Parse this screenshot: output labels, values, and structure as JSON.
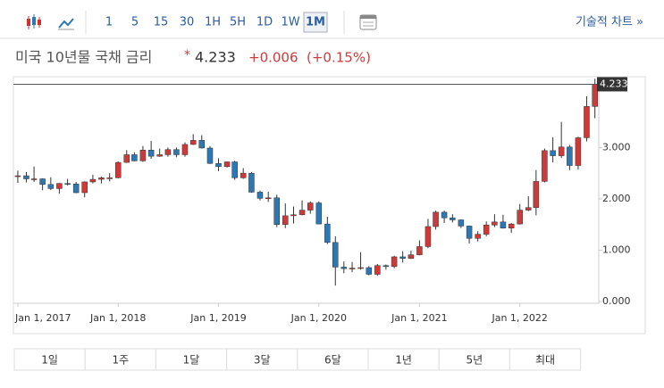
{
  "toolbar": {
    "intervals": [
      "1",
      "5",
      "15",
      "30",
      "1H",
      "5H",
      "1D",
      "1W",
      "1M"
    ],
    "selected": 8,
    "link": "기술적 차트 »"
  },
  "header": {
    "title": "미국 10년물 국채 금리",
    "price": "4.233",
    "change": "+0.006",
    "change_pct": "(+0.15%)"
  },
  "ranges": [
    "1일",
    "1주",
    "1달",
    "3달",
    "6달",
    "1년",
    "5년",
    "최대"
  ],
  "chart_data": {
    "type": "candlestick",
    "x": [
      "2017-01-01",
      "2017-02-01",
      "2017-03-01",
      "2017-04-01",
      "2017-05-01",
      "2017-06-01",
      "2017-07-01",
      "2017-08-01",
      "2017-09-01",
      "2017-10-01",
      "2017-11-01",
      "2017-12-01",
      "2018-01-01",
      "2018-02-01",
      "2018-03-01",
      "2018-04-01",
      "2018-05-01",
      "2018-06-01",
      "2018-07-01",
      "2018-08-01",
      "2018-09-01",
      "2018-10-01",
      "2018-11-01",
      "2018-12-01",
      "2019-01-01",
      "2019-02-01",
      "2019-03-01",
      "2019-04-01",
      "2019-05-01",
      "2019-06-01",
      "2019-07-01",
      "2019-08-01",
      "2019-09-01",
      "2019-10-01",
      "2019-11-01",
      "2019-12-01",
      "2020-01-01",
      "2020-02-01",
      "2020-03-01",
      "2020-04-01",
      "2020-05-01",
      "2020-06-01",
      "2020-07-01",
      "2020-08-01",
      "2020-09-01",
      "2020-10-01",
      "2020-11-01",
      "2020-12-01",
      "2021-01-01",
      "2021-02-01",
      "2021-03-01",
      "2021-04-01",
      "2021-05-01",
      "2021-06-01",
      "2021-07-01",
      "2021-08-01",
      "2021-09-01",
      "2021-10-01",
      "2021-11-01",
      "2021-12-01",
      "2022-01-01",
      "2022-02-01",
      "2022-03-01",
      "2022-04-01",
      "2022-05-01",
      "2022-06-01",
      "2022-07-01",
      "2022-08-01",
      "2022-09-01",
      "2022-10-01"
    ],
    "open": [
      2.44,
      2.45,
      2.39,
      2.39,
      2.28,
      2.2,
      2.3,
      2.29,
      2.12,
      2.33,
      2.38,
      2.41,
      2.41,
      2.71,
      2.86,
      2.74,
      2.95,
      2.83,
      2.86,
      2.96,
      2.86,
      3.06,
      3.14,
      2.99,
      2.69,
      2.63,
      2.72,
      2.41,
      2.5,
      2.13,
      2.01,
      2.02,
      1.5,
      1.67,
      1.69,
      1.78,
      1.92,
      1.51,
      1.15,
      0.67,
      0.64,
      0.65,
      0.66,
      0.53,
      0.7,
      0.68,
      0.87,
      0.84,
      0.91,
      1.07,
      1.46,
      1.74,
      1.63,
      1.59,
      1.47,
      1.23,
      1.31,
      1.49,
      1.55,
      1.43,
      1.51,
      1.78,
      1.83,
      2.34,
      2.94,
      2.84,
      3.01,
      2.65,
      3.19,
      3.8
    ],
    "high": [
      2.55,
      2.52,
      2.63,
      2.4,
      2.42,
      2.31,
      2.39,
      2.33,
      2.34,
      2.47,
      2.43,
      2.5,
      2.73,
      2.95,
      2.91,
      3.03,
      3.13,
      2.98,
      3.0,
      3.0,
      3.1,
      3.26,
      3.24,
      3.03,
      2.79,
      2.73,
      2.74,
      2.6,
      2.52,
      2.16,
      2.14,
      2.08,
      1.91,
      1.85,
      1.97,
      1.95,
      1.95,
      1.65,
      1.27,
      0.78,
      0.77,
      0.96,
      0.69,
      0.73,
      0.72,
      0.89,
      0.98,
      0.99,
      1.19,
      1.61,
      1.77,
      1.77,
      1.7,
      1.6,
      1.48,
      1.37,
      1.56,
      1.7,
      1.69,
      1.53,
      1.9,
      2.05,
      2.56,
      2.98,
      3.2,
      3.5,
      3.05,
      3.21,
      4.0,
      4.34
    ],
    "low": [
      2.31,
      2.32,
      2.33,
      2.17,
      2.17,
      2.1,
      2.26,
      2.11,
      2.03,
      2.3,
      2.3,
      2.34,
      2.4,
      2.7,
      2.73,
      2.72,
      2.78,
      2.82,
      2.82,
      2.81,
      2.82,
      3.05,
      2.98,
      2.68,
      2.54,
      2.61,
      2.37,
      2.39,
      2.12,
      1.97,
      1.94,
      1.45,
      1.43,
      1.52,
      1.68,
      1.71,
      1.51,
      1.12,
      0.31,
      0.55,
      0.57,
      0.62,
      0.51,
      0.5,
      0.62,
      0.65,
      0.76,
      0.83,
      0.9,
      1.04,
      1.4,
      1.53,
      1.54,
      1.43,
      1.13,
      1.17,
      1.27,
      1.45,
      1.42,
      1.34,
      1.5,
      1.76,
      1.68,
      2.32,
      2.71,
      2.8,
      2.56,
      2.57,
      3.12,
      3.57
    ],
    "close": [
      2.45,
      2.39,
      2.39,
      2.28,
      2.2,
      2.3,
      2.29,
      2.12,
      2.33,
      2.38,
      2.41,
      2.41,
      2.71,
      2.86,
      2.74,
      2.95,
      2.83,
      2.86,
      2.96,
      2.86,
      3.06,
      3.14,
      2.99,
      2.69,
      2.63,
      2.72,
      2.41,
      2.5,
      2.13,
      2.01,
      2.02,
      1.5,
      1.67,
      1.69,
      1.78,
      1.92,
      1.51,
      1.15,
      0.67,
      0.64,
      0.65,
      0.66,
      0.53,
      0.7,
      0.68,
      0.87,
      0.84,
      0.91,
      1.07,
      1.46,
      1.74,
      1.63,
      1.59,
      1.47,
      1.23,
      1.31,
      1.49,
      1.55,
      1.43,
      1.51,
      1.78,
      1.83,
      2.34,
      2.94,
      2.84,
      3.01,
      2.65,
      3.19,
      3.8,
      4.233
    ],
    "up_color": "#d0393a",
    "down_color": "#2b78b5",
    "last_price": {
      "value": 4.233,
      "label": "4.233"
    },
    "xlim": [
      "2016-12-16",
      "2022-10-15"
    ],
    "xticks": [
      {
        "value": "2017-01-01",
        "label": "Jan 1, 2017"
      },
      {
        "value": "2018-01-01",
        "label": "Jan 1, 2018"
      },
      {
        "value": "2019-01-01",
        "label": "Jan 1, 2019"
      },
      {
        "value": "2020-01-01",
        "label": "Jan 1, 2020"
      },
      {
        "value": "2021-01-01",
        "label": "Jan 1, 2021"
      },
      {
        "value": "2022-01-01",
        "label": "Jan 1, 2022"
      }
    ],
    "ylim": [
      0,
      4.38
    ],
    "yticks": [
      {
        "value": 0,
        "label": "0.000"
      },
      {
        "value": 1,
        "label": "1.000"
      },
      {
        "value": 2,
        "label": "2.000"
      },
      {
        "value": 3,
        "label": "3.000"
      }
    ]
  }
}
